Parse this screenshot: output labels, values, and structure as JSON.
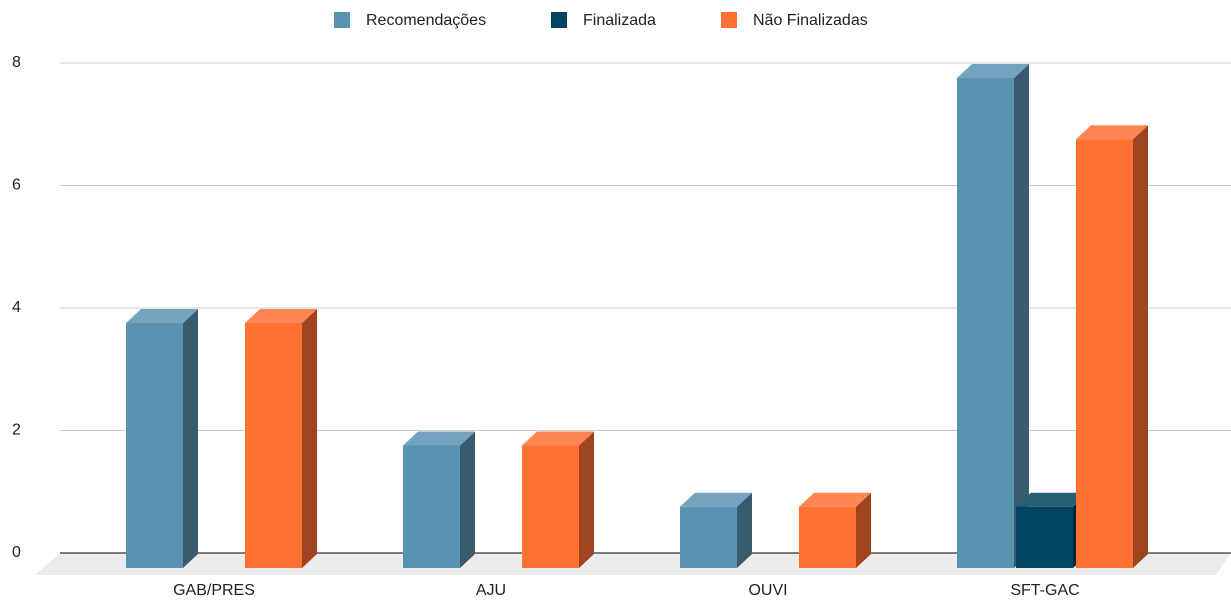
{
  "chart_data": {
    "type": "bar3d",
    "categories": [
      "GAB/PRES",
      "AJU",
      "OUVI",
      "SFT-GAC"
    ],
    "series": [
      {
        "name": "Recomendações",
        "color": "#5a93b2",
        "values": [
          4,
          2,
          1,
          8
        ]
      },
      {
        "name": "Finalizada",
        "color": "#00445f",
        "values": [
          0,
          0,
          0,
          1
        ]
      },
      {
        "name": "Não Finalizadas",
        "color": "#ff7033",
        "values": [
          4,
          2,
          1,
          7
        ]
      }
    ],
    "ylim": [
      0,
      8
    ],
    "yticks": [
      0,
      2,
      4,
      6,
      8
    ],
    "grid": true,
    "legend": "top"
  }
}
